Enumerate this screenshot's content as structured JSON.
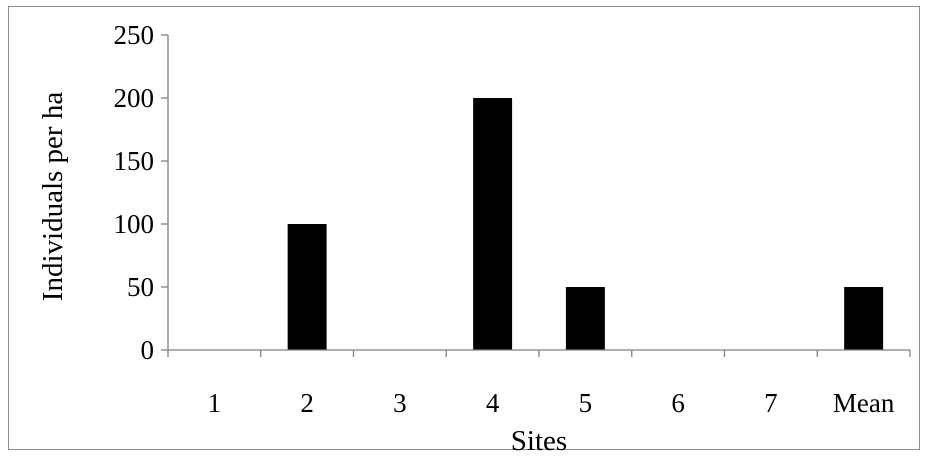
{
  "chart_data": {
    "type": "bar",
    "title": "",
    "xlabel": "Sites",
    "ylabel": "Individuals per ha",
    "categories": [
      "1",
      "2",
      "3",
      "4",
      "5",
      "6",
      "7",
      "Mean"
    ],
    "values": [
      0,
      100,
      0,
      200,
      50,
      0,
      0,
      50
    ],
    "ylim": [
      0,
      250
    ],
    "yticks": [
      "0",
      "50",
      "100",
      "150",
      "200",
      "250"
    ],
    "grid": false,
    "legend": "none",
    "bar_color": "#000000",
    "axis_color": "#7f7f7f"
  }
}
